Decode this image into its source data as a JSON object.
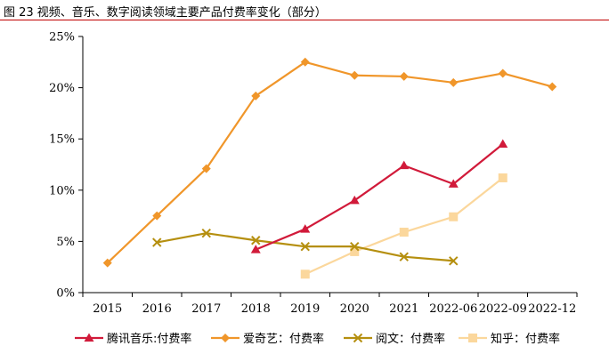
{
  "figure_title": "图 23 视频、音乐、数字阅读领域主要产品付费率变化（部分）",
  "colors": {
    "title_rule": "#c00000"
  },
  "chart_data": {
    "type": "line",
    "title": "",
    "xlabel": "",
    "ylabel": "",
    "categories": [
      "2015",
      "2016",
      "2017",
      "2018",
      "2019",
      "2020",
      "2021",
      "2022-06",
      "2022-09",
      "2022-12"
    ],
    "ylim": [
      0,
      25
    ],
    "yticks": [
      0,
      5,
      10,
      15,
      20,
      25
    ],
    "ytick_labels": [
      "0%",
      "5%",
      "10%",
      "15%",
      "20%",
      "25%"
    ],
    "y_unit": "%",
    "grid": false,
    "legend_position": "bottom",
    "series": [
      {
        "name": "腾讯音乐:付费率",
        "color": "#d11a3a",
        "marker": "triangle",
        "values": [
          null,
          null,
          null,
          4.2,
          6.2,
          9.0,
          12.4,
          10.6,
          14.5,
          null
        ]
      },
      {
        "name": "爱奇艺：付费率",
        "color": "#f0962a",
        "marker": "diamond",
        "values": [
          2.9,
          7.5,
          12.1,
          19.2,
          22.5,
          21.2,
          21.1,
          20.5,
          21.4,
          20.1
        ]
      },
      {
        "name": "阅文：付费率",
        "color": "#b58f0f",
        "marker": "x",
        "values": [
          null,
          4.9,
          5.8,
          5.1,
          4.5,
          4.5,
          3.5,
          3.1,
          null,
          null
        ]
      },
      {
        "name": "知乎：付费率",
        "color": "#fbd79c",
        "marker": "square",
        "values": [
          null,
          null,
          null,
          null,
          1.8,
          4.0,
          5.9,
          7.4,
          11.2,
          null
        ]
      }
    ]
  }
}
